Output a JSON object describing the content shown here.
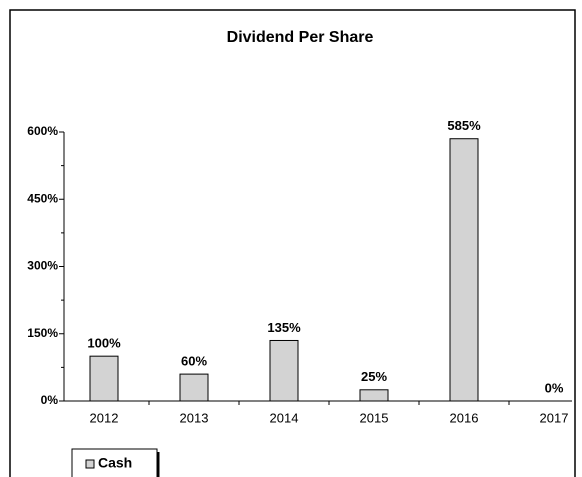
{
  "chart_data": {
    "type": "bar",
    "title": "Dividend Per Share",
    "categories": [
      "2012",
      "2013",
      "2014",
      "2015",
      "2016",
      "2017"
    ],
    "series": [
      {
        "name": "Cash",
        "color": "#d3d3d3",
        "values": [
          100,
          60,
          135,
          25,
          585,
          0
        ],
        "value_labels": [
          "100%",
          "60%",
          "135%",
          "25%",
          "585%",
          "0%"
        ]
      }
    ],
    "ylim": [
      0,
      600
    ],
    "yticks": [
      {
        "value": 0,
        "label": "0%"
      },
      {
        "value": 150,
        "label": "150%"
      },
      {
        "value": 300,
        "label": "300%"
      },
      {
        "value": 450,
        "label": "450%"
      },
      {
        "value": 600,
        "label": "600%"
      }
    ],
    "minor_yticks": [
      75,
      225,
      375,
      525
    ],
    "legend": "bottom-left"
  }
}
